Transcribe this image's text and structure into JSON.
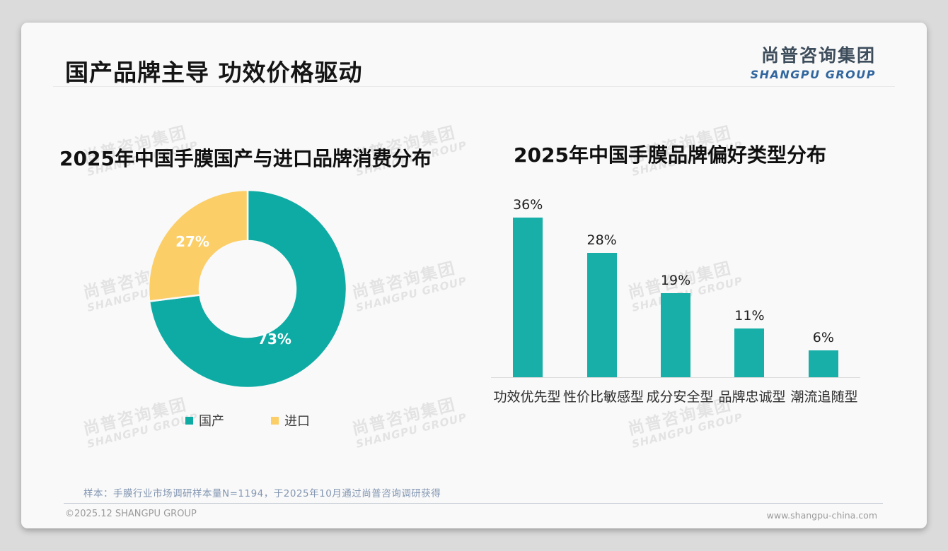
{
  "page": {
    "title": "国产品牌主导 功效价格驱动",
    "logo": {
      "cn": "尚普咨询集团",
      "en": "SHANGPU GROUP"
    },
    "watermark": {
      "line1": "尚普咨询集团",
      "line2": "SHANGPU GROUP"
    },
    "footnote": "样本：手膜行业市场调研样本量N=1194，于2025年10月通过尚普咨询调研获得",
    "footer": {
      "copyright": "©2025.12 SHANGPU GROUP",
      "website": "www.shangpu-china.com"
    }
  },
  "colors": {
    "teal": "#0EABA4",
    "bar_teal": "#17AFA8",
    "yellow": "#FBCE68",
    "logo_cn": "#3E4D5C",
    "logo_en": "#31669E",
    "note_blue": "#8296B2"
  },
  "chart_data": [
    {
      "type": "pie",
      "subtype": "donut",
      "title": "2025年中国手膜国产与进口品牌消费分布",
      "labels": [
        "国产",
        "进口"
      ],
      "values": [
        73,
        27
      ],
      "value_labels": [
        "73%",
        "27%"
      ],
      "colors": [
        "#0EABA4",
        "#FBCE68"
      ],
      "start_angle": "top",
      "direction": "clockwise",
      "legend_position": "bottom"
    },
    {
      "type": "bar",
      "title": "2025年中国手膜品牌偏好类型分布",
      "categories": [
        "功效优先型",
        "性价比敏感型",
        "成分安全型",
        "品牌忠诚型",
        "潮流追随型"
      ],
      "values": [
        36,
        28,
        19,
        11,
        6
      ],
      "value_labels": [
        "36%",
        "28%",
        "19%",
        "11%",
        "6%"
      ],
      "bar_color": "#17AFA8",
      "ylim": [
        0,
        40
      ],
      "grid": false,
      "axis_line": "bottom"
    }
  ]
}
